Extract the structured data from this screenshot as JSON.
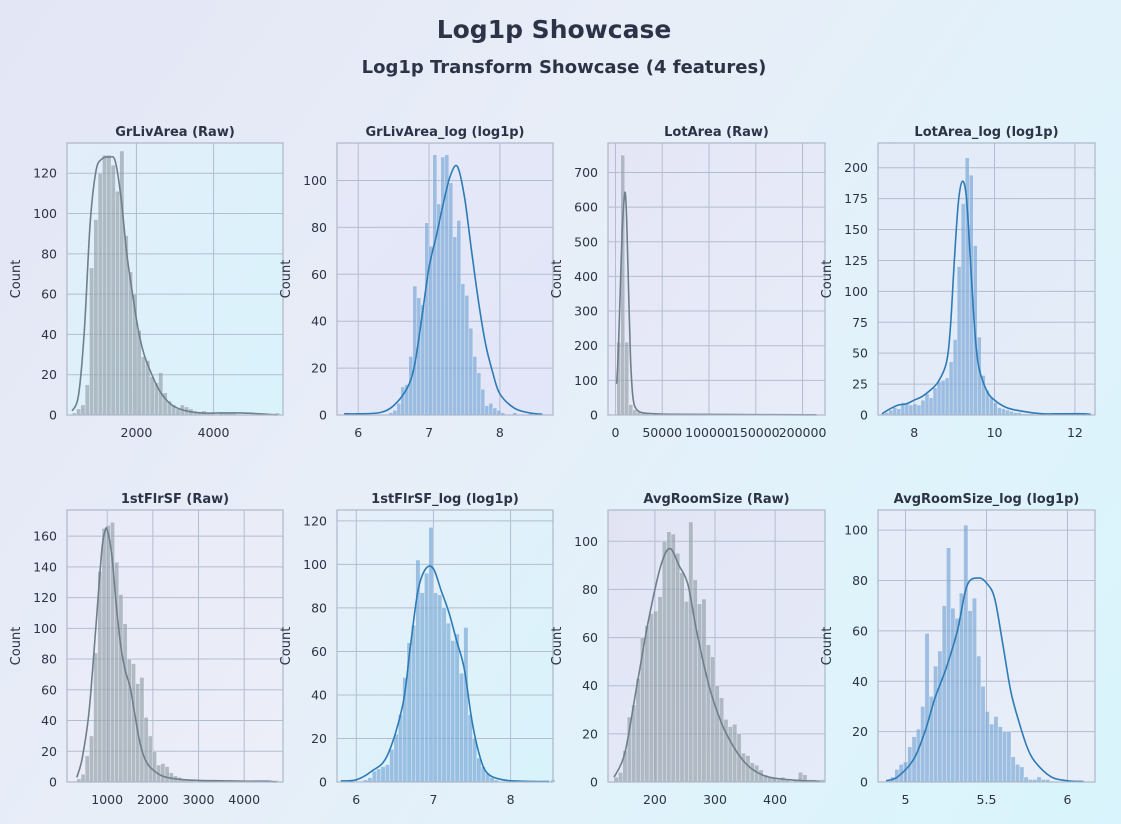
{
  "header": {
    "title": "Log1p Showcase",
    "subtitle": "Log1p Transform Showcase (4 features)"
  },
  "colors": {
    "raw": "#8e9ba5",
    "raw_line": "#6e7f8b",
    "log": "#6fa2d4",
    "log_line": "#2c7bb6"
  },
  "chart_data": [
    {
      "type": "histogram",
      "title": "GrLivArea (Raw)",
      "ylabel": "Count",
      "style": "raw",
      "xlim": [
        200,
        5800
      ],
      "ylim": [
        0,
        135
      ],
      "xticks": [
        2000,
        4000
      ],
      "yticks": [
        0,
        20,
        40,
        60,
        80,
        100,
        120
      ],
      "bin_start": 334,
      "bin_width": 112,
      "counts": [
        1,
        3,
        5,
        15,
        73,
        97,
        120,
        129,
        129,
        124,
        111,
        131,
        89,
        71,
        60,
        42,
        29,
        27,
        19,
        16,
        21,
        11,
        7,
        5,
        3,
        5,
        4,
        3,
        2,
        1,
        2,
        1,
        1,
        0,
        1,
        1,
        1,
        1,
        0,
        0,
        0,
        0,
        0,
        0,
        0,
        0,
        0,
        1
      ],
      "kde": [
        [
          334,
          2
        ],
        [
          500,
          10
        ],
        [
          650,
          42
        ],
        [
          800,
          95
        ],
        [
          950,
          121
        ],
        [
          1100,
          127
        ],
        [
          1300,
          128
        ],
        [
          1450,
          126
        ],
        [
          1600,
          108
        ],
        [
          1750,
          80
        ],
        [
          1900,
          60
        ],
        [
          2050,
          42
        ],
        [
          2200,
          30
        ],
        [
          2400,
          20
        ],
        [
          2600,
          12
        ],
        [
          2800,
          7
        ],
        [
          3000,
          4
        ],
        [
          3300,
          2
        ],
        [
          3700,
          1
        ],
        [
          4200,
          1
        ],
        [
          4700,
          1
        ],
        [
          5300,
          0.5
        ],
        [
          5642,
          0
        ]
      ]
    },
    {
      "type": "histogram",
      "title": "GrLivArea_log (log1p)",
      "ylabel": "Count",
      "style": "log",
      "xlim": [
        5.7,
        8.75
      ],
      "ylim": [
        0,
        116
      ],
      "xticks": [
        6,
        7,
        8
      ],
      "yticks": [
        0,
        20,
        40,
        60,
        80,
        100
      ],
      "bin_start": 5.81,
      "bin_width": 0.0565,
      "counts": [
        1,
        0,
        0,
        1,
        0,
        0,
        0,
        0,
        0,
        0,
        0,
        1,
        2,
        5,
        12,
        13,
        25,
        55,
        50,
        47,
        82,
        72,
        111,
        90,
        110,
        111,
        99,
        76,
        83,
        56,
        51,
        37,
        25,
        18,
        11,
        4,
        5,
        3,
        2,
        1,
        0,
        0,
        1,
        0,
        0,
        0,
        1
      ],
      "kde": [
        [
          5.8,
          0.5
        ],
        [
          6.0,
          0.5
        ],
        [
          6.3,
          1
        ],
        [
          6.5,
          4
        ],
        [
          6.7,
          12
        ],
        [
          6.8,
          22
        ],
        [
          6.9,
          42
        ],
        [
          7.0,
          63
        ],
        [
          7.1,
          76
        ],
        [
          7.2,
          90
        ],
        [
          7.3,
          102
        ],
        [
          7.4,
          106
        ],
        [
          7.5,
          93
        ],
        [
          7.6,
          70
        ],
        [
          7.7,
          48
        ],
        [
          7.8,
          30
        ],
        [
          7.9,
          18
        ],
        [
          8.0,
          9
        ],
        [
          8.2,
          3
        ],
        [
          8.4,
          1
        ],
        [
          8.6,
          0.3
        ]
      ]
    },
    {
      "type": "histogram",
      "title": "LotArea (Raw)",
      "ylabel": "Count",
      "style": "raw",
      "xlim": [
        -8000,
        224000
      ],
      "ylim": [
        0,
        785
      ],
      "xticks": [
        0,
        50000,
        100000,
        150000,
        200000
      ],
      "yticks": [
        0,
        100,
        200,
        300,
        400,
        500,
        600,
        700
      ],
      "bin_start": 1300,
      "bin_width": 4300,
      "counts": [
        210,
        750,
        210,
        30,
        15,
        8,
        5,
        3,
        2,
        2,
        1,
        1,
        1,
        0,
        0,
        0,
        0,
        0,
        0,
        0,
        0,
        0,
        0,
        0,
        0,
        0,
        0,
        0,
        0,
        0,
        0,
        0,
        1,
        0,
        0,
        0,
        0,
        0,
        0,
        0,
        0,
        0,
        0,
        0,
        0,
        0,
        0,
        0,
        1
      ],
      "kde": [
        [
          1300,
          90
        ],
        [
          3000,
          180
        ],
        [
          5000,
          350
        ],
        [
          7000,
          520
        ],
        [
          9000,
          615
        ],
        [
          10500,
          640
        ],
        [
          12000,
          560
        ],
        [
          14000,
          360
        ],
        [
          16000,
          170
        ],
        [
          18000,
          70
        ],
        [
          20000,
          30
        ],
        [
          24000,
          12
        ],
        [
          30000,
          6
        ],
        [
          40000,
          4
        ],
        [
          60000,
          2
        ],
        [
          100000,
          1.5
        ],
        [
          150000,
          1
        ],
        [
          200000,
          0.6
        ],
        [
          215000,
          0.5
        ]
      ]
    },
    {
      "type": "histogram",
      "title": "LotArea_log (log1p)",
      "ylabel": "Count",
      "style": "log",
      "xlim": [
        7.1,
        12.5
      ],
      "ylim": [
        0,
        220
      ],
      "xticks": [
        8,
        10,
        12
      ],
      "yticks": [
        0,
        25,
        50,
        75,
        100,
        125,
        150,
        175,
        200
      ],
      "bin_start": 7.17,
      "bin_width": 0.1,
      "counts": [
        1,
        2,
        4,
        6,
        5,
        10,
        9,
        8,
        9,
        8,
        12,
        17,
        14,
        22,
        27,
        28,
        30,
        43,
        61,
        120,
        171,
        208,
        194,
        137,
        63,
        32,
        20,
        14,
        10,
        6,
        5,
        4,
        3,
        2,
        2,
        1,
        1,
        1,
        0,
        0,
        0,
        0,
        0,
        0,
        0,
        0,
        1,
        1,
        1,
        1
      ],
      "kde": [
        [
          7.2,
          1
        ],
        [
          7.4,
          5
        ],
        [
          7.6,
          8
        ],
        [
          7.8,
          9
        ],
        [
          8.0,
          12
        ],
        [
          8.2,
          15
        ],
        [
          8.4,
          20
        ],
        [
          8.6,
          27
        ],
        [
          8.8,
          42
        ],
        [
          8.9,
          70
        ],
        [
          9.0,
          125
        ],
        [
          9.1,
          172
        ],
        [
          9.2,
          189
        ],
        [
          9.3,
          176
        ],
        [
          9.4,
          125
        ],
        [
          9.5,
          72
        ],
        [
          9.6,
          40
        ],
        [
          9.8,
          20
        ],
        [
          10.0,
          12
        ],
        [
          10.3,
          6
        ],
        [
          10.7,
          3
        ],
        [
          11.2,
          1
        ],
        [
          11.7,
          1
        ],
        [
          12.2,
          1
        ],
        [
          12.4,
          0.5
        ]
      ]
    },
    {
      "type": "histogram",
      "title": "1stFlrSF (Raw)",
      "ylabel": "Count",
      "style": "raw",
      "xlim": [
        120,
        4850
      ],
      "ylim": [
        0,
        177
      ],
      "xticks": [
        1000,
        2000,
        3000,
        4000
      ],
      "yticks": [
        0,
        20,
        40,
        60,
        80,
        100,
        120,
        140,
        160
      ],
      "bin_start": 334,
      "bin_width": 92,
      "counts": [
        2,
        5,
        17,
        30,
        84,
        137,
        165,
        167,
        169,
        143,
        122,
        103,
        80,
        77,
        64,
        68,
        42,
        30,
        20,
        11,
        12,
        10,
        6,
        4,
        3,
        2,
        1,
        1,
        0,
        1,
        1,
        1,
        0,
        0,
        0,
        0,
        0,
        0,
        0,
        0,
        0,
        0,
        0,
        0,
        0,
        0,
        0,
        1
      ],
      "kde": [
        [
          334,
          3
        ],
        [
          450,
          15
        ],
        [
          600,
          45
        ],
        [
          750,
          100
        ],
        [
          880,
          150
        ],
        [
          950,
          163
        ],
        [
          1000,
          164
        ],
        [
          1100,
          148
        ],
        [
          1200,
          115
        ],
        [
          1300,
          88
        ],
        [
          1400,
          72
        ],
        [
          1500,
          62
        ],
        [
          1600,
          45
        ],
        [
          1700,
          28
        ],
        [
          1800,
          17
        ],
        [
          1900,
          11
        ],
        [
          2000,
          8
        ],
        [
          2200,
          4
        ],
        [
          2500,
          2
        ],
        [
          3000,
          1
        ],
        [
          3500,
          0.8
        ],
        [
          4000,
          0.5
        ],
        [
          4500,
          0.5
        ],
        [
          4692,
          0
        ]
      ]
    },
    {
      "type": "histogram",
      "title": "1stFlrSF_log (log1p)",
      "ylabel": "Count",
      "style": "log",
      "xlim": [
        5.75,
        8.55
      ],
      "ylim": [
        0,
        125
      ],
      "xticks": [
        6,
        7,
        8
      ],
      "yticks": [
        0,
        20,
        40,
        60,
        80,
        100,
        120
      ],
      "bin_start": 5.81,
      "bin_width": 0.0565,
      "counts": [
        1,
        0,
        0,
        0,
        0,
        1,
        2,
        5,
        6,
        7,
        8,
        15,
        22,
        31,
        48,
        64,
        72,
        102,
        87,
        96,
        117,
        87,
        86,
        80,
        73,
        65,
        68,
        50,
        71,
        31,
        20,
        11,
        7,
        4,
        2,
        1,
        0,
        0,
        0,
        0,
        0,
        0,
        0,
        0,
        0,
        0,
        0,
        0,
        1
      ],
      "kde": [
        [
          5.8,
          0.5
        ],
        [
          6.0,
          1
        ],
        [
          6.2,
          5
        ],
        [
          6.4,
          12
        ],
        [
          6.6,
          35
        ],
        [
          6.7,
          62
        ],
        [
          6.8,
          88
        ],
        [
          6.9,
          98
        ],
        [
          7.0,
          98
        ],
        [
          7.1,
          88
        ],
        [
          7.2,
          78
        ],
        [
          7.3,
          65
        ],
        [
          7.4,
          52
        ],
        [
          7.5,
          28
        ],
        [
          7.6,
          12
        ],
        [
          7.7,
          4
        ],
        [
          7.9,
          1
        ],
        [
          8.2,
          0.3
        ],
        [
          8.5,
          0.2
        ]
      ]
    },
    {
      "type": "histogram",
      "title": "AvgRoomSize (Raw)",
      "ylabel": "Count",
      "style": "raw",
      "xlim": [
        122,
        483
      ],
      "ylim": [
        0,
        113
      ],
      "xticks": [
        200,
        300,
        400
      ],
      "yticks": [
        0,
        20,
        40,
        60,
        80,
        100
      ],
      "bin_start": 132,
      "bin_width": 7.3,
      "counts": [
        2,
        4,
        13,
        27,
        32,
        43,
        60,
        65,
        70,
        71,
        77,
        100,
        104,
        103,
        95,
        87,
        75,
        108,
        84,
        74,
        76,
        57,
        52,
        40,
        35,
        26,
        23,
        24,
        20,
        12,
        11,
        8,
        7,
        5,
        3,
        2,
        2,
        1,
        2,
        1,
        0,
        1,
        4,
        3,
        1,
        1,
        0,
        1
      ],
      "kde": [
        [
          132,
          2
        ],
        [
          150,
          12
        ],
        [
          170,
          40
        ],
        [
          190,
          68
        ],
        [
          210,
          90
        ],
        [
          225,
          97
        ],
        [
          240,
          90
        ],
        [
          255,
          82
        ],
        [
          270,
          62
        ],
        [
          290,
          40
        ],
        [
          310,
          25
        ],
        [
          330,
          15
        ],
        [
          350,
          8
        ],
        [
          370,
          4
        ],
        [
          390,
          2
        ],
        [
          420,
          1
        ],
        [
          450,
          0.5
        ],
        [
          475,
          0.3
        ]
      ]
    },
    {
      "type": "histogram",
      "title": "AvgRoomSize_log (log1p)",
      "ylabel": "Count",
      "style": "log",
      "xlim": [
        4.83,
        6.17
      ],
      "ylim": [
        0,
        108
      ],
      "xticks": [
        5.0,
        5.5,
        6.0
      ],
      "yticks": [
        0,
        20,
        40,
        60,
        80,
        100
      ],
      "bin_start": 4.88,
      "bin_width": 0.0266,
      "counts": [
        1,
        2,
        5,
        7,
        8,
        14,
        18,
        21,
        30,
        59,
        34,
        46,
        52,
        70,
        93,
        69,
        65,
        75,
        102,
        68,
        73,
        50,
        38,
        28,
        23,
        26,
        22,
        20,
        20,
        10,
        7,
        6,
        2,
        1,
        1,
        2,
        1,
        1
      ],
      "kde": [
        [
          4.88,
          0.5
        ],
        [
          4.95,
          2
        ],
        [
          5.05,
          9
        ],
        [
          5.12,
          20
        ],
        [
          5.18,
          33
        ],
        [
          5.25,
          45
        ],
        [
          5.32,
          60
        ],
        [
          5.38,
          78
        ],
        [
          5.45,
          81
        ],
        [
          5.5,
          79
        ],
        [
          5.55,
          73
        ],
        [
          5.6,
          55
        ],
        [
          5.65,
          36
        ],
        [
          5.7,
          24
        ],
        [
          5.75,
          14
        ],
        [
          5.8,
          8
        ],
        [
          5.9,
          2
        ],
        [
          6.0,
          0.5
        ],
        [
          6.1,
          0.2
        ]
      ]
    }
  ]
}
